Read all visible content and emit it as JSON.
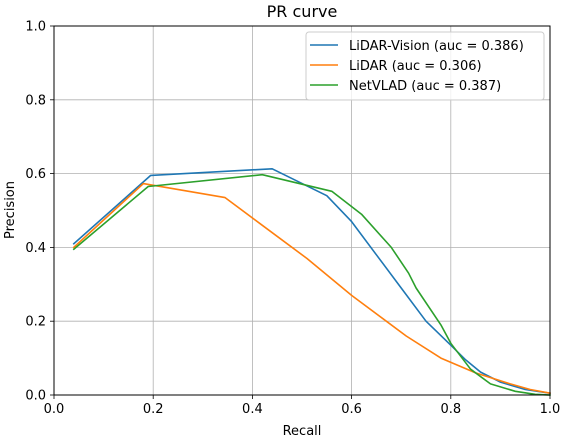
{
  "chart_data": {
    "type": "line",
    "title": "PR curve",
    "xlabel": "Recall",
    "ylabel": "Precision",
    "xlim": [
      0.0,
      1.0
    ],
    "ylim": [
      0.0,
      1.0
    ],
    "xticks": [
      "0.0",
      "0.2",
      "0.4",
      "0.6",
      "0.8",
      "1.0"
    ],
    "yticks": [
      "0.0",
      "0.2",
      "0.4",
      "0.6",
      "0.8",
      "1.0"
    ],
    "grid": true,
    "legend_position": "top-right",
    "series": [
      {
        "name": "LiDAR-Vision (auc = 0.386)",
        "color": "#1f77b4",
        "x": [
          0.04,
          0.195,
          0.44,
          0.55,
          0.6,
          0.65,
          0.7,
          0.75,
          0.8,
          0.83,
          0.86,
          0.9,
          0.95,
          1.0
        ],
        "y": [
          0.41,
          0.595,
          0.613,
          0.54,
          0.47,
          0.38,
          0.29,
          0.2,
          0.135,
          0.095,
          0.062,
          0.035,
          0.015,
          0.005
        ]
      },
      {
        "name": "LiDAR (auc = 0.306)",
        "color": "#ff7f0e",
        "x": [
          0.04,
          0.18,
          0.345,
          0.42,
          0.51,
          0.6,
          0.67,
          0.71,
          0.78,
          0.85,
          0.92,
          0.96,
          1.0
        ],
        "y": [
          0.4,
          0.573,
          0.535,
          0.46,
          0.37,
          0.27,
          0.2,
          0.16,
          0.1,
          0.06,
          0.03,
          0.015,
          0.005
        ]
      },
      {
        "name": "NetVLAD (auc = 0.387)",
        "color": "#2ca02c",
        "x": [
          0.04,
          0.19,
          0.42,
          0.56,
          0.62,
          0.68,
          0.715,
          0.73,
          0.78,
          0.8,
          0.84,
          0.88,
          0.93,
          0.97,
          1.0
        ],
        "y": [
          0.395,
          0.565,
          0.597,
          0.552,
          0.49,
          0.4,
          0.33,
          0.29,
          0.19,
          0.14,
          0.07,
          0.03,
          0.01,
          0.002,
          0.0
        ]
      }
    ]
  }
}
